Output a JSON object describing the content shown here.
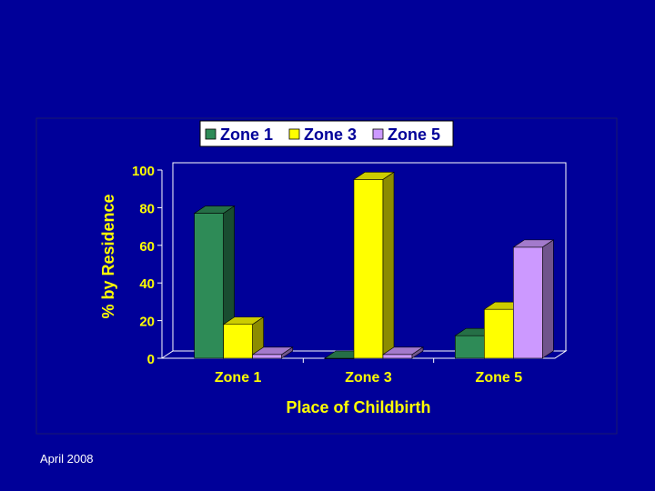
{
  "footer": {
    "date_text": "April 2008"
  },
  "chart_data": {
    "type": "bar",
    "style": "3d-clustered",
    "title": "",
    "xlabel": "Place of Childbirth",
    "ylabel": "% by Residence",
    "categories": [
      "Zone 1",
      "Zone 3",
      "Zone 5"
    ],
    "series": [
      {
        "name": "Zone 1",
        "values": [
          77,
          0,
          12
        ],
        "color": "#2e8b57"
      },
      {
        "name": "Zone 3",
        "values": [
          18,
          95,
          26
        ],
        "color": "#ffff00"
      },
      {
        "name": "Zone 5",
        "values": [
          2,
          2,
          59
        ],
        "color": "#cc99ff"
      }
    ],
    "ylim": [
      0,
      100
    ],
    "yticks": [
      "0",
      "20",
      "40",
      "60",
      "80",
      "100"
    ],
    "grid": false,
    "legend_position": "top",
    "colors": {
      "background": "#000099",
      "text": "#ffff00",
      "axis": "#ffffff",
      "legend_bg": "#ffffff"
    }
  }
}
